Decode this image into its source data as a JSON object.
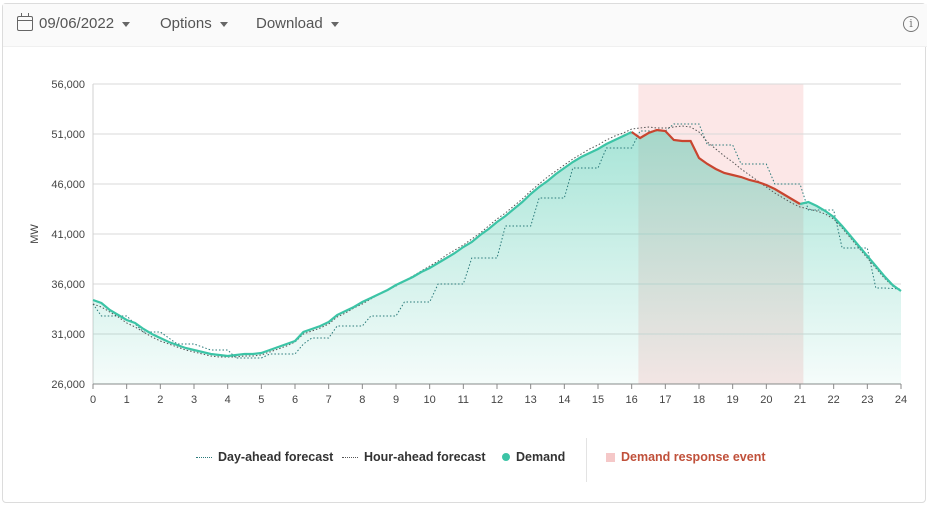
{
  "toolbar": {
    "date": "09/06/2022",
    "options_label": "Options",
    "download_label": "Download",
    "info_glyph": "i"
  },
  "legend": {
    "day_ahead": "Day-ahead forecast",
    "hour_ahead": "Hour-ahead forecast",
    "demand": "Demand",
    "event": "Demand response event"
  },
  "colors": {
    "demand": "#3cc4a6",
    "event_line": "#c8452f",
    "event_band": "#fbe3e3",
    "forecast": "#2a7a7a",
    "hour_ahead": "#555555",
    "event_text": "#c0503a"
  },
  "chart_data": {
    "type": "line",
    "ylabel": "MW",
    "xlabel": "",
    "xlim": [
      0,
      24
    ],
    "ylim": [
      26000,
      56000
    ],
    "x_ticks": [
      "0",
      "1",
      "2",
      "3",
      "4",
      "5",
      "6",
      "7",
      "8",
      "9",
      "10",
      "11",
      "12",
      "13",
      "14",
      "15",
      "16",
      "17",
      "18",
      "19",
      "20",
      "21",
      "22",
      "23",
      "24"
    ],
    "y_ticks": [
      "26,000",
      "31,000",
      "36,000",
      "41,000",
      "46,000",
      "51,000",
      "56,000"
    ],
    "grid": true,
    "demand_response_event": {
      "start": 16.2,
      "end": 21.1
    },
    "series": [
      {
        "name": "Demand",
        "x": [
          0,
          0.25,
          0.5,
          0.75,
          1,
          1.25,
          1.5,
          1.75,
          2,
          2.25,
          2.5,
          2.75,
          3,
          3.25,
          3.5,
          3.75,
          4,
          4.25,
          4.5,
          4.75,
          5,
          5.25,
          5.5,
          5.75,
          6,
          6.25,
          6.5,
          6.75,
          7,
          7.25,
          7.5,
          7.75,
          8,
          8.25,
          8.5,
          8.75,
          9,
          9.25,
          9.5,
          9.75,
          10,
          10.25,
          10.5,
          10.75,
          11,
          11.25,
          11.5,
          11.75,
          12,
          12.25,
          12.5,
          12.75,
          13,
          13.25,
          13.5,
          13.75,
          14,
          14.25,
          14.5,
          14.75,
          15,
          15.25,
          15.5,
          15.75,
          16,
          16.25,
          16.5,
          16.75,
          17,
          17.25,
          17.5,
          17.75,
          18,
          18.25,
          18.5,
          18.75,
          19,
          19.25,
          19.5,
          19.75,
          20,
          20.25,
          20.5,
          20.75,
          21,
          21.25,
          21.5,
          21.75,
          22,
          22.25,
          22.5,
          22.75,
          23,
          23.25,
          23.5,
          23.75,
          24
        ],
        "y": [
          34400,
          34100,
          33400,
          32900,
          32400,
          32100,
          31500,
          31000,
          30600,
          30200,
          29900,
          29600,
          29400,
          29200,
          29000,
          28900,
          28800,
          28900,
          29000,
          29000,
          29100,
          29400,
          29700,
          30000,
          30300,
          31200,
          31500,
          31800,
          32200,
          32900,
          33300,
          33700,
          34200,
          34600,
          35000,
          35400,
          35900,
          36300,
          36700,
          37200,
          37600,
          38100,
          38600,
          39100,
          39700,
          40200,
          40900,
          41500,
          42200,
          42800,
          43500,
          44200,
          45000,
          45700,
          46300,
          47000,
          47600,
          48200,
          48700,
          49100,
          49500,
          50000,
          50400,
          50800,
          51200,
          50600,
          51100,
          51400,
          51300,
          50400,
          50300,
          50300,
          48600,
          48000,
          47500,
          47100,
          46900,
          46700,
          46400,
          46200,
          45900,
          45500,
          45000,
          44500,
          44000,
          44200,
          43800,
          43300,
          42700,
          41800,
          40800,
          39800,
          38800,
          37800,
          36800,
          35900,
          35300
        ]
      },
      {
        "name": "Hour-ahead forecast",
        "x": [
          0,
          0.25,
          0.5,
          0.75,
          1,
          1.25,
          1.5,
          1.75,
          2,
          2.25,
          2.5,
          2.75,
          3,
          3.25,
          3.5,
          3.75,
          4,
          4.25,
          4.5,
          4.75,
          5,
          5.25,
          5.5,
          5.75,
          6,
          6.25,
          6.5,
          6.75,
          7,
          7.25,
          7.5,
          7.75,
          8,
          8.25,
          8.5,
          8.75,
          9,
          9.25,
          9.5,
          9.75,
          10,
          10.25,
          10.5,
          10.75,
          11,
          11.25,
          11.5,
          11.75,
          12,
          12.25,
          12.5,
          12.75,
          13,
          13.25,
          13.5,
          13.75,
          14,
          14.25,
          14.5,
          14.75,
          15,
          15.25,
          15.5,
          15.75,
          16,
          16.25,
          16.5,
          16.75,
          17,
          17.25,
          17.5,
          17.75,
          18,
          18.25,
          18.5,
          18.75,
          19,
          19.25,
          19.5,
          19.75,
          20,
          20.25,
          20.5,
          20.75,
          21,
          21.25,
          21.5,
          21.75,
          22,
          22.25,
          22.5,
          22.75,
          23,
          23.25,
          23.5,
          23.75,
          24
        ],
        "y": [
          34000,
          33700,
          33200,
          32700,
          32100,
          31700,
          31200,
          30700,
          30300,
          30000,
          29700,
          29400,
          29200,
          29000,
          28800,
          28700,
          28700,
          28700,
          28800,
          28800,
          28900,
          29200,
          29500,
          29800,
          30200,
          31000,
          31300,
          31600,
          32000,
          32700,
          33100,
          33600,
          34000,
          34500,
          35000,
          35400,
          35800,
          36300,
          36800,
          37300,
          37800,
          38300,
          38900,
          39400,
          39900,
          40500,
          41100,
          41800,
          42500,
          43100,
          43800,
          44500,
          45300,
          46000,
          46700,
          47300,
          47900,
          48500,
          49000,
          49500,
          49900,
          50400,
          50800,
          51100,
          51500,
          51600,
          51700,
          51600,
          51600,
          51700,
          51800,
          51700,
          51200,
          50200,
          49500,
          48800,
          48200,
          47500,
          46900,
          46300,
          45700,
          45100,
          44600,
          44100,
          43700,
          43500,
          43300,
          43000,
          42500,
          41600,
          40600,
          39600,
          38600,
          37600,
          36600,
          35800,
          35300
        ]
      },
      {
        "name": "Day-ahead forecast",
        "x": [
          0,
          0.25,
          0.5,
          1,
          1.5,
          2,
          2.25,
          2.5,
          3,
          3.5,
          4,
          4.25,
          4.5,
          5,
          5.25,
          5.5,
          6,
          6.25,
          6.5,
          7,
          7.25,
          7.5,
          8,
          8.25,
          8.5,
          9,
          9.25,
          9.5,
          10,
          10.25,
          10.5,
          11,
          11.25,
          11.5,
          12,
          12.25,
          12.5,
          13,
          13.25,
          13.5,
          14,
          14.25,
          14.5,
          15,
          15.25,
          15.5,
          16,
          16.25,
          16.5,
          17,
          17.25,
          17.5,
          18,
          18.25,
          18.5,
          19,
          19.25,
          19.5,
          20,
          20.25,
          20.5,
          21,
          21.25,
          21.5,
          22,
          22.25,
          22.5,
          23,
          23.25,
          23.5,
          24
        ],
        "y": [
          34000,
          32800,
          32800,
          32800,
          31200,
          31200,
          30600,
          30000,
          30000,
          29400,
          29400,
          28600,
          28600,
          28600,
          29000,
          29000,
          29000,
          30000,
          30600,
          30600,
          31800,
          31800,
          31800,
          32800,
          32800,
          32800,
          34200,
          34200,
          34200,
          36000,
          36000,
          36000,
          38600,
          38600,
          38600,
          41800,
          41800,
          41800,
          44600,
          44600,
          44600,
          47600,
          47600,
          47600,
          49600,
          49600,
          49600,
          51300,
          51300,
          51300,
          52000,
          52000,
          52000,
          49900,
          49900,
          49900,
          48000,
          48000,
          48000,
          46000,
          46000,
          46000,
          43400,
          43400,
          43400,
          39600,
          39600,
          39600,
          35600,
          35600,
          35500
        ]
      }
    ]
  }
}
